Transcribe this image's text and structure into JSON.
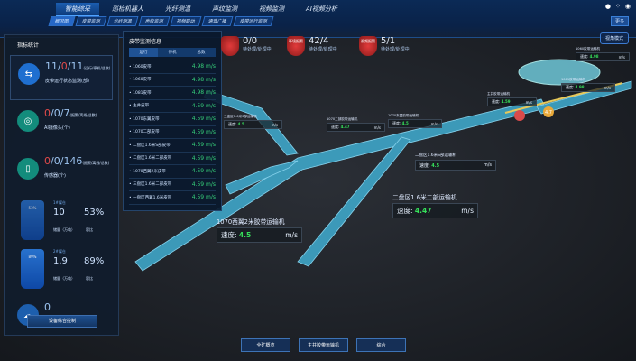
{
  "nav": {
    "items": [
      "智能综采",
      "巡检机器人",
      "光纤测温",
      "声纹监测",
      "视频监测",
      "AI视频分析"
    ],
    "active": 0
  },
  "tabs": {
    "items": [
      "概况图",
      "皮带监测",
      "光纤测温",
      "声纹监测",
      "视频联动",
      "语音广播",
      "皮带运行监测"
    ],
    "more": "更多"
  },
  "left": {
    "title": "指标统计",
    "belts": {
      "running": "11",
      "stopped": "0",
      "total": "11",
      "legend": "(运行/停机/总数)",
      "label": "皮带运行状态监测(部)"
    },
    "cameras": {
      "alarm": "0",
      "offline": "0",
      "total": "7",
      "legend": "(报警/离线/总数)",
      "label": "AI摄像头(个)"
    },
    "sensors": {
      "alarm": "0",
      "offline": "0",
      "total": "146",
      "legend": "(报警/离线/总数)",
      "label": "传感器(个)"
    },
    "silos": [
      {
        "name": "1#煤仓",
        "pct_label": "53%",
        "storage": "10",
        "ratio": "53%",
        "storage_label": "储量（万吨）",
        "ratio_label": "容比",
        "fill": 0.53
      },
      {
        "name": "2#煤仓",
        "pct_label": "89%",
        "storage": "1.9",
        "ratio": "89%",
        "storage_label": "储量（万吨）",
        "ratio_label": "容比",
        "fill": 0.89
      }
    ],
    "today": {
      "value": "0",
      "label": "今日运煤量(t)"
    },
    "control_button": "设备综合控制"
  },
  "belt_panel": {
    "title": "皮带监测信息",
    "tabs": [
      "运行",
      "停机",
      "总数"
    ],
    "items": [
      {
        "name": "1060皮带",
        "speed": "4.98 m/s"
      },
      {
        "name": "1060皮带",
        "speed": "4.98 m/s"
      },
      {
        "name": "1081皮带",
        "speed": "4.98 m/s"
      },
      {
        "name": "主井皮带",
        "speed": "4.59 m/s"
      },
      {
        "name": "1070东翼皮带",
        "speed": "4.59 m/s"
      },
      {
        "name": "1070二部皮带",
        "speed": "4.59 m/s"
      },
      {
        "name": "二盘区1.6米S部皮带",
        "speed": "4.59 m/s"
      },
      {
        "name": "二盘区1.6米二部皮带",
        "speed": "4.59 m/s"
      },
      {
        "name": "1070西翼2米皮带",
        "speed": "4.59 m/s"
      },
      {
        "name": "三盘区1.6米二部皮带",
        "speed": "4.59 m/s"
      },
      {
        "name": "一盘区西翼1.6米皮带",
        "speed": "4.59 m/s"
      }
    ]
  },
  "alarms": [
    {
      "badge": "",
      "value": "0/0",
      "label": "待处理/处理中"
    },
    {
      "badge": "环境报警",
      "value": "42/4",
      "label": "待处理/处理中"
    },
    {
      "badge": "视频报警",
      "value": "5/1",
      "label": "待处理/处理中"
    }
  ],
  "view_mode": "视角模式",
  "scene_labels": [
    {
      "name": "二盘区1.6米S部运输机",
      "speed_label": "速度:",
      "speed": "4.5",
      "unit": "m/s"
    },
    {
      "name": "1070二部胶带运输机",
      "speed_label": "速度:",
      "speed": "4.47",
      "unit": "m/s"
    },
    {
      "name": "1070东翼胶带运输机",
      "speed_label": "速度:",
      "speed": "4.5",
      "unit": "m/s"
    },
    {
      "name": "二盘区1.6米S部运输机",
      "speed_label": "速度:",
      "speed": "4.5",
      "unit": "m/s"
    },
    {
      "name": "二盘区1.6米二部运输机",
      "speed_label": "速度:",
      "speed": "4.47",
      "unit": "m/s"
    },
    {
      "name": "1070西翼2米胶带运输机",
      "speed_label": "速度:",
      "speed": "4.5",
      "unit": "m/s"
    },
    {
      "name": "1060胶带运输机",
      "speed_label": "速度:",
      "speed": "4.98",
      "unit": "m/s"
    },
    {
      "name": "1081胶带运输机",
      "speed_label": "速度:",
      "speed": "4.98",
      "unit": "m/s"
    },
    {
      "name": "主井胶带运输机",
      "speed_label": "速度:",
      "speed": "4.59",
      "unit": "m/s"
    }
  ],
  "marker_badge": "4.7",
  "bottom": [
    "全矿概览",
    "主井胶带运输机",
    "综合"
  ]
}
